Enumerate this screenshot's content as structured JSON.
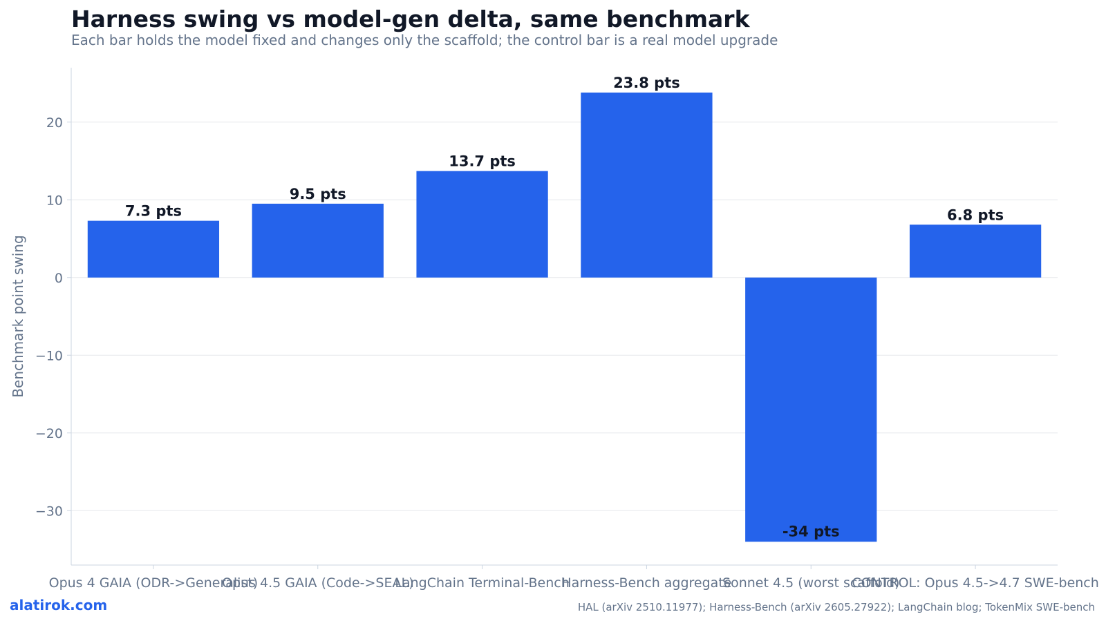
{
  "header": {
    "title": "Harness swing vs model-gen delta, same benchmark",
    "subtitle": "Each bar holds the model fixed and changes only the scaffold; the control bar is a real model upgrade"
  },
  "footer": {
    "brand": "alatirok.com",
    "sources": "HAL (arXiv 2510.11977); Harness-Bench (arXiv 2605.27922); LangChain blog; TokenMix SWE-bench"
  },
  "colors": {
    "bar": "#2563eb",
    "grid": "#e5e7eb",
    "axis": "#cbd5e1",
    "tick_text": "#64748b",
    "label_text": "#111827"
  },
  "chart_data": {
    "type": "bar",
    "title": "Harness swing vs model-gen delta, same benchmark",
    "subtitle": "Each bar holds the model fixed and changes only the scaffold; the control bar is a real model upgrade",
    "xlabel": "",
    "ylabel": "Benchmark point swing",
    "ylim": [
      -37,
      27
    ],
    "yticks": [
      20,
      10,
      0,
      -10,
      -20,
      -30
    ],
    "ytick_labels": [
      "20",
      "10",
      "0",
      "−10",
      "−20",
      "−30"
    ],
    "grid": true,
    "categories": [
      "Opus 4 GAIA (ODR->Generalist)",
      "Opus 4.5 GAIA (Code->SEAL)",
      "LangChain Terminal-Bench",
      "Harness-Bench aggregate",
      "Sonnet 4.5 (worst scaffold)",
      "CONTROL: Opus 4.5->4.7 SWE-bench"
    ],
    "values": [
      7.3,
      9.5,
      13.7,
      23.8,
      -34,
      6.8
    ],
    "data_labels": [
      "7.3 pts",
      "9.5 pts",
      "13.7 pts",
      "23.8 pts",
      "-34 pts",
      "6.8 pts"
    ]
  }
}
